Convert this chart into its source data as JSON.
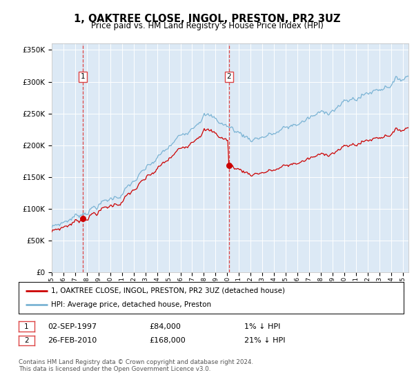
{
  "title": "1, OAKTREE CLOSE, INGOL, PRESTON, PR2 3UZ",
  "subtitle": "Price paid vs. HM Land Registry's House Price Index (HPI)",
  "sale1_date_num": 1997.67,
  "sale1_price": 84000,
  "sale2_date_num": 2010.15,
  "sale2_price": 168000,
  "hpi_color": "#7ab3d4",
  "price_color": "#cc0000",
  "vline_color": "#dd4444",
  "background_color": "#dce9f5",
  "plot_bg": "#ffffff",
  "xmin": 1995.0,
  "xmax": 2025.5,
  "ymin": 0,
  "ymax": 360000,
  "legend_line1": "1, OAKTREE CLOSE, INGOL, PRESTON, PR2 3UZ (detached house)",
  "legend_line2": "HPI: Average price, detached house, Preston",
  "sale1_date_str": "02-SEP-1997",
  "sale1_price_str": "£84,000",
  "sale1_hpi_str": "1% ↓ HPI",
  "sale2_date_str": "26-FEB-2010",
  "sale2_price_str": "£168,000",
  "sale2_hpi_str": "21% ↓ HPI",
  "footer": "Contains HM Land Registry data © Crown copyright and database right 2024.\nThis data is licensed under the Open Government Licence v3.0."
}
